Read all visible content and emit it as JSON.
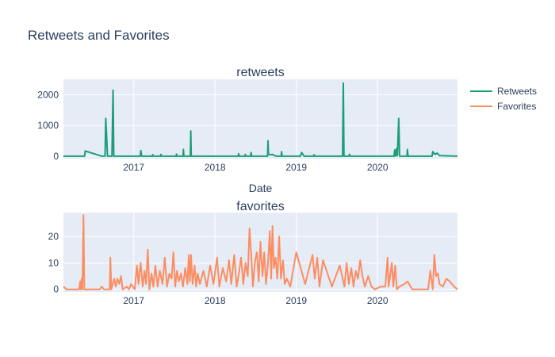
{
  "title": "Retweets and Favorites",
  "colors": {
    "plot_bg": "#e5ecf6",
    "grid": "#ffffff",
    "text": "#2a3f5f"
  },
  "chart_data": [
    {
      "type": "line",
      "subplot_title": "retweets",
      "xlabel": "Date",
      "ylabel": "",
      "ylim": [
        -80,
        2500
      ],
      "yticks": [
        0,
        1000,
        2000
      ],
      "xlim": [
        "2016-02-20",
        "2020-12-25"
      ],
      "xticks": [
        "2017-01-01",
        "2018-01-01",
        "2019-01-01",
        "2020-01-01"
      ],
      "xtick_labels": [
        "2017",
        "2018",
        "2019",
        "2020"
      ],
      "grid": true,
      "series": [
        {
          "name": "Retweets",
          "color": "#1b9e77",
          "points": [
            [
              "2016-02-20",
              0
            ],
            [
              "2016-05-25",
              0
            ],
            [
              "2016-05-28",
              170
            ],
            [
              "2016-07-15",
              60
            ],
            [
              "2016-08-10",
              0
            ],
            [
              "2016-08-25",
              0
            ],
            [
              "2016-08-28",
              1230
            ],
            [
              "2016-09-05",
              0
            ],
            [
              "2016-09-25",
              0
            ],
            [
              "2016-09-30",
              2150
            ],
            [
              "2016-10-03",
              0
            ],
            [
              "2017-01-30",
              0
            ],
            [
              "2017-02-02",
              180
            ],
            [
              "2017-02-05",
              0
            ],
            [
              "2017-03-25",
              0
            ],
            [
              "2017-03-27",
              50
            ],
            [
              "2017-03-30",
              0
            ],
            [
              "2017-05-01",
              0
            ],
            [
              "2017-05-03",
              60
            ],
            [
              "2017-05-05",
              0
            ],
            [
              "2017-07-10",
              0
            ],
            [
              "2017-07-12",
              70
            ],
            [
              "2017-07-14",
              0
            ],
            [
              "2017-08-10",
              0
            ],
            [
              "2017-08-12",
              220
            ],
            [
              "2017-08-14",
              0
            ],
            [
              "2017-09-12",
              0
            ],
            [
              "2017-09-14",
              820
            ],
            [
              "2017-09-16",
              0
            ],
            [
              "2018-04-15",
              0
            ],
            [
              "2018-04-17",
              80
            ],
            [
              "2018-04-19",
              0
            ],
            [
              "2018-05-15",
              0
            ],
            [
              "2018-05-17",
              60
            ],
            [
              "2018-05-19",
              0
            ],
            [
              "2018-06-10",
              0
            ],
            [
              "2018-06-12",
              120
            ],
            [
              "2018-06-14",
              0
            ],
            [
              "2018-08-25",
              0
            ],
            [
              "2018-08-27",
              500
            ],
            [
              "2018-08-29",
              80
            ],
            [
              "2018-09-05",
              40
            ],
            [
              "2018-09-15",
              60
            ],
            [
              "2018-09-25",
              20
            ],
            [
              "2018-10-05",
              0
            ],
            [
              "2018-10-25",
              0
            ],
            [
              "2018-10-27",
              150
            ],
            [
              "2018-10-29",
              0
            ],
            [
              "2019-01-20",
              0
            ],
            [
              "2019-01-25",
              120
            ],
            [
              "2019-02-05",
              0
            ],
            [
              "2019-03-20",
              0
            ],
            [
              "2019-03-22",
              50
            ],
            [
              "2019-03-24",
              0
            ],
            [
              "2019-07-28",
              0
            ],
            [
              "2019-07-31",
              2380
            ],
            [
              "2019-08-03",
              0
            ],
            [
              "2019-08-25",
              0
            ],
            [
              "2019-08-28",
              60
            ],
            [
              "2019-09-01",
              0
            ],
            [
              "2020-03-15",
              0
            ],
            [
              "2020-03-18",
              200
            ],
            [
              "2020-03-22",
              0
            ],
            [
              "2020-03-26",
              250
            ],
            [
              "2020-03-30",
              20
            ],
            [
              "2020-04-05",
              1230
            ],
            [
              "2020-04-09",
              0
            ],
            [
              "2020-05-12",
              0
            ],
            [
              "2020-05-14",
              220
            ],
            [
              "2020-05-17",
              0
            ],
            [
              "2020-09-02",
              0
            ],
            [
              "2020-09-05",
              150
            ],
            [
              "2020-09-15",
              60
            ],
            [
              "2020-09-25",
              100
            ],
            [
              "2020-10-05",
              20
            ],
            [
              "2020-12-25",
              0
            ]
          ]
        }
      ]
    },
    {
      "type": "line",
      "subplot_title": "favorites",
      "xlabel": "",
      "ylabel": "",
      "ylim": [
        -1,
        29
      ],
      "yticks": [
        0,
        10,
        20
      ],
      "xlim": [
        "2016-02-20",
        "2020-12-25"
      ],
      "xticks": [
        "2017-01-01",
        "2018-01-01",
        "2019-01-01",
        "2020-01-01"
      ],
      "xtick_labels": [
        "2017",
        "2018",
        "2019",
        "2020"
      ],
      "grid": true,
      "series": [
        {
          "name": "Favorites",
          "color": "#fc8d62",
          "points": [
            [
              "2016-02-20",
              1
            ],
            [
              "2016-03-05",
              0
            ],
            [
              "2016-05-01",
              0
            ],
            [
              "2016-05-05",
              3
            ],
            [
              "2016-05-08",
              0
            ],
            [
              "2016-05-12",
              4
            ],
            [
              "2016-05-15",
              0
            ],
            [
              "2016-05-20",
              28
            ],
            [
              "2016-05-24",
              0
            ],
            [
              "2016-08-01",
              0
            ],
            [
              "2016-08-10",
              1
            ],
            [
              "2016-08-20",
              0
            ],
            [
              "2016-09-15",
              0
            ],
            [
              "2016-09-18",
              12
            ],
            [
              "2016-09-22",
              0
            ],
            [
              "2016-10-05",
              4
            ],
            [
              "2016-10-12",
              1
            ],
            [
              "2016-10-20",
              4
            ],
            [
              "2016-10-28",
              2
            ],
            [
              "2016-11-05",
              5
            ],
            [
              "2016-11-12",
              0
            ],
            [
              "2016-12-01",
              1
            ],
            [
              "2016-12-10",
              0
            ],
            [
              "2016-12-20",
              2
            ],
            [
              "2017-01-05",
              0
            ],
            [
              "2017-01-15",
              9
            ],
            [
              "2017-01-22",
              2
            ],
            [
              "2017-02-01",
              10
            ],
            [
              "2017-02-10",
              1
            ],
            [
              "2017-02-18",
              7
            ],
            [
              "2017-02-25",
              2
            ],
            [
              "2017-03-05",
              15
            ],
            [
              "2017-03-12",
              0
            ],
            [
              "2017-03-22",
              6
            ],
            [
              "2017-03-30",
              1
            ],
            [
              "2017-04-08",
              9
            ],
            [
              "2017-04-18",
              1
            ],
            [
              "2017-04-28",
              7
            ],
            [
              "2017-05-10",
              2
            ],
            [
              "2017-05-20",
              12
            ],
            [
              "2017-05-30",
              1
            ],
            [
              "2017-06-10",
              6
            ],
            [
              "2017-06-20",
              4
            ],
            [
              "2017-06-28",
              14
            ],
            [
              "2017-07-06",
              1
            ],
            [
              "2017-07-14",
              7
            ],
            [
              "2017-07-22",
              3
            ],
            [
              "2017-08-01",
              6
            ],
            [
              "2017-08-10",
              1
            ],
            [
              "2017-08-20",
              8
            ],
            [
              "2017-08-30",
              2
            ],
            [
              "2017-09-05",
              13
            ],
            [
              "2017-09-10",
              3
            ],
            [
              "2017-09-15",
              13
            ],
            [
              "2017-09-22",
              2
            ],
            [
              "2017-10-01",
              9
            ],
            [
              "2017-10-08",
              1
            ],
            [
              "2017-10-15",
              6
            ],
            [
              "2017-10-25",
              2
            ],
            [
              "2017-11-10",
              7
            ],
            [
              "2017-11-25",
              1
            ],
            [
              "2017-12-10",
              9
            ],
            [
              "2017-12-25",
              2
            ],
            [
              "2018-01-10",
              12
            ],
            [
              "2018-01-20",
              1
            ],
            [
              "2018-02-05",
              8
            ],
            [
              "2018-02-20",
              3
            ],
            [
              "2018-03-05",
              11
            ],
            [
              "2018-03-15",
              2
            ],
            [
              "2018-03-28",
              13
            ],
            [
              "2018-04-08",
              1
            ],
            [
              "2018-04-18",
              6
            ],
            [
              "2018-04-28",
              12
            ],
            [
              "2018-05-08",
              2
            ],
            [
              "2018-05-18",
              10
            ],
            [
              "2018-05-28",
              5
            ],
            [
              "2018-06-05",
              23
            ],
            [
              "2018-06-12",
              14
            ],
            [
              "2018-06-20",
              1
            ],
            [
              "2018-06-30",
              11
            ],
            [
              "2018-07-08",
              14
            ],
            [
              "2018-07-16",
              3
            ],
            [
              "2018-07-24",
              18
            ],
            [
              "2018-08-02",
              5
            ],
            [
              "2018-08-10",
              14
            ],
            [
              "2018-08-18",
              2
            ],
            [
              "2018-08-26",
              9
            ],
            [
              "2018-09-04",
              22
            ],
            [
              "2018-09-10",
              4
            ],
            [
              "2018-09-16",
              24
            ],
            [
              "2018-09-22",
              8
            ],
            [
              "2018-09-30",
              12
            ],
            [
              "2018-10-08",
              4
            ],
            [
              "2018-10-16",
              20
            ],
            [
              "2018-10-24",
              4
            ],
            [
              "2018-11-02",
              11
            ],
            [
              "2018-11-10",
              2
            ],
            [
              "2018-11-20",
              4
            ],
            [
              "2018-12-05",
              1
            ],
            [
              "2019-01-01",
              14
            ],
            [
              "2019-02-10",
              2
            ],
            [
              "2019-03-15",
              13
            ],
            [
              "2019-03-25",
              4
            ],
            [
              "2019-04-05",
              12
            ],
            [
              "2019-04-15",
              1
            ],
            [
              "2019-05-01",
              11
            ],
            [
              "2019-06-10",
              1
            ],
            [
              "2019-07-15",
              9
            ],
            [
              "2019-08-05",
              1
            ],
            [
              "2019-08-15",
              10
            ],
            [
              "2019-08-25",
              2
            ],
            [
              "2019-09-05",
              8
            ],
            [
              "2019-09-15",
              1
            ],
            [
              "2019-09-25",
              7
            ],
            [
              "2019-10-05",
              4
            ],
            [
              "2019-10-15",
              11
            ],
            [
              "2019-10-25",
              5
            ],
            [
              "2019-11-05",
              1
            ],
            [
              "2019-11-20",
              5
            ],
            [
              "2019-12-05",
              1
            ],
            [
              "2019-12-20",
              0
            ],
            [
              "2020-01-15",
              1
            ],
            [
              "2020-02-05",
              1
            ],
            [
              "2020-02-15",
              12
            ],
            [
              "2020-02-20",
              1
            ],
            [
              "2020-03-05",
              10
            ],
            [
              "2020-03-12",
              1
            ],
            [
              "2020-03-20",
              9
            ],
            [
              "2020-03-28",
              0
            ],
            [
              "2020-04-08",
              1
            ],
            [
              "2020-05-01",
              2
            ],
            [
              "2020-05-15",
              3
            ],
            [
              "2020-06-05",
              0
            ],
            [
              "2020-08-15",
              0
            ],
            [
              "2020-08-25",
              7
            ],
            [
              "2020-09-05",
              0
            ],
            [
              "2020-09-12",
              13
            ],
            [
              "2020-09-20",
              5
            ],
            [
              "2020-09-28",
              6
            ],
            [
              "2020-10-05",
              2
            ],
            [
              "2020-10-20",
              1
            ],
            [
              "2020-11-05",
              4
            ],
            [
              "2020-11-20",
              3
            ],
            [
              "2020-12-10",
              1
            ],
            [
              "2020-12-25",
              0
            ]
          ]
        }
      ]
    }
  ]
}
